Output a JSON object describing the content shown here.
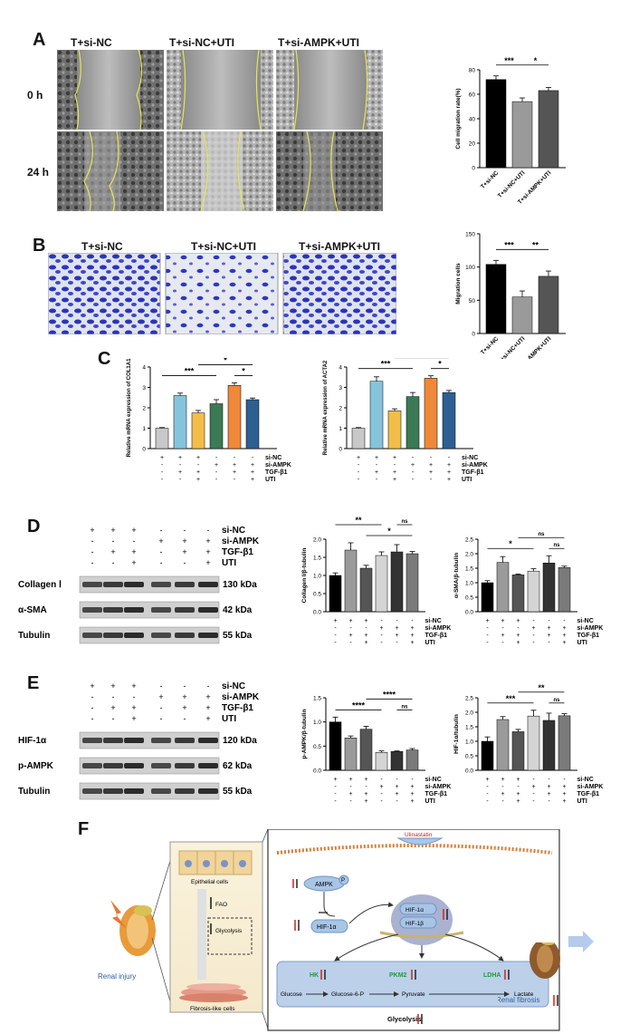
{
  "panels": {
    "A": "A",
    "B": "B",
    "C": "C",
    "D": "D",
    "E": "E",
    "F": "F"
  },
  "panelA": {
    "headers": [
      "T+si-NC",
      "T+si-NC+UTI",
      "T+si-AMPK+UTI"
    ],
    "rows": [
      "0 h",
      "24 h"
    ]
  },
  "panelB": {
    "headers": [
      "T+si-NC",
      "T+si-NC+UTI",
      "T+si-AMPK+UTI"
    ]
  },
  "panelD_blot": {
    "conditions": [
      "si-NC",
      "si-AMPK",
      "TGF-β1",
      "UTI"
    ],
    "signs": [
      [
        "+",
        "+",
        "+",
        "-",
        "-",
        "-"
      ],
      [
        "-",
        "-",
        "-",
        "+",
        "+",
        "+"
      ],
      [
        "-",
        "+",
        "+",
        "-",
        "+",
        "+"
      ],
      [
        "-",
        "-",
        "+",
        "-",
        "-",
        "+"
      ]
    ],
    "bands": [
      {
        "name": "Collagen Ⅰ",
        "kda": "130 kDa"
      },
      {
        "name": "α-SMA",
        "kda": "42 kDa"
      },
      {
        "name": "Tubulin",
        "kda": "55 kDa"
      }
    ]
  },
  "panelE_blot": {
    "conditions": [
      "si-NC",
      "si-AMPK",
      "TGF-β1",
      "UTI"
    ],
    "signs": [
      [
        "+",
        "+",
        "+",
        "-",
        "-",
        "-"
      ],
      [
        "-",
        "-",
        "-",
        "+",
        "+",
        "+"
      ],
      [
        "-",
        "+",
        "+",
        "-",
        "+",
        "+"
      ],
      [
        "-",
        "-",
        "+",
        "-",
        "-",
        "+"
      ]
    ],
    "bands": [
      {
        "name": "HIF-1α",
        "kda": "120 kDa"
      },
      {
        "name": "p-AMPK",
        "kda": "62 kDa"
      },
      {
        "name": "Tubulin",
        "kda": "55 kDa"
      }
    ]
  },
  "panelF": {
    "renal_injury": "Renal injury",
    "epithelial": "Epithelial cells",
    "fao": "FAO",
    "glycolysis_small": "Glycolysis",
    "fibrosis_cells": "Fibrosis-like cells",
    "ulinastatin": "Ulinastatin",
    "ampk": "AMPK",
    "p": "P",
    "hif_left": "HIF-1α",
    "hif_a": "HIF-1α",
    "hif_b": "HIF-1β",
    "hk": "HK",
    "pkm2": "PKM2",
    "ldha": "LDHA",
    "glucose": "Glucose",
    "g6p": "Glucose-6-P",
    "pyruvate": "Pyruvate",
    "lactate": "Lactate",
    "glycolysis": "Glycolysis",
    "renal_fibrosis": "Renal fibrosis"
  },
  "chart_data": [
    {
      "id": "A-migration",
      "type": "bar",
      "categories": [
        "T+si-NC",
        "T+si-NC+UTI",
        "T+si-AMPK+UTI"
      ],
      "values": [
        72,
        54,
        63
      ],
      "errors": [
        3,
        3,
        2.5
      ],
      "colors": [
        "#000000",
        "#9a9a9a",
        "#555555"
      ],
      "ylabel": "Cell migration rate(%)",
      "ylim": [
        0,
        80
      ],
      "yticks": [
        0,
        20,
        40,
        60,
        80
      ],
      "sig": [
        {
          "a": 0,
          "b": 1,
          "text": "***"
        },
        {
          "a": 1,
          "b": 2,
          "text": "*"
        }
      ]
    },
    {
      "id": "B-migration",
      "type": "bar",
      "categories": [
        "T+si-NC",
        "T+si-NC+UTI",
        "T+si-AMPK+UTI"
      ],
      "values": [
        104,
        55,
        86
      ],
      "errors": [
        6,
        9,
        8
      ],
      "colors": [
        "#000000",
        "#9a9a9a",
        "#555555"
      ],
      "ylabel": "Migration cells",
      "ylim": [
        0,
        150
      ],
      "yticks": [
        0,
        50,
        100,
        150
      ],
      "sig": [
        {
          "a": 0,
          "b": 1,
          "text": "***"
        },
        {
          "a": 1,
          "b": 2,
          "text": "**"
        }
      ]
    },
    {
      "id": "C-COL1A1",
      "type": "bar",
      "values": [
        1.0,
        2.6,
        1.75,
        2.2,
        3.1,
        2.4
      ],
      "errors": [
        0.03,
        0.12,
        0.12,
        0.2,
        0.12,
        0.08
      ],
      "colors": [
        "#c8c8c8",
        "#86c4dc",
        "#f2be4a",
        "#3a7a55",
        "#f0883a",
        "#2d5f93"
      ],
      "ylabel": "Relative mRNA expression of COL1A1",
      "ylim": [
        0,
        4
      ],
      "yticks": [
        0,
        1,
        2,
        3,
        4
      ],
      "conditions": [
        "si-NC",
        "si-AMPK",
        "TGF-β1",
        "UTI"
      ],
      "signs": [
        [
          "+",
          "+",
          "+",
          "-",
          "-",
          "-"
        ],
        [
          "-",
          "-",
          "-",
          "+",
          "+",
          "+"
        ],
        [
          "-",
          "+",
          "+",
          "-",
          "+",
          "+"
        ],
        [
          "-",
          "-",
          "+",
          "-",
          "-",
          "+"
        ]
      ],
      "sig": [
        {
          "a": 0,
          "b": 3,
          "text": "***",
          "lvl": 0
        },
        {
          "a": 2,
          "b": 5,
          "text": "*",
          "lvl": 1
        },
        {
          "a": 4,
          "b": 5,
          "text": "*",
          "lvl": 0
        }
      ]
    },
    {
      "id": "C-ACTA2",
      "type": "bar",
      "values": [
        1.0,
        3.3,
        1.85,
        2.55,
        3.45,
        2.75
      ],
      "errors": [
        0.03,
        0.22,
        0.1,
        0.2,
        0.12,
        0.1
      ],
      "colors": [
        "#c8c8c8",
        "#86c4dc",
        "#f2be4a",
        "#3a7a55",
        "#f0883a",
        "#2d5f93"
      ],
      "ylabel": "Relative mRNA expression of ACTA2",
      "ylim": [
        0,
        4
      ],
      "yticks": [
        0,
        1,
        2,
        3,
        4
      ],
      "conditions": [
        "si-NC",
        "si-AMPK",
        "TGF-β1",
        "UTI"
      ],
      "signs": [
        [
          "+",
          "+",
          "+",
          "-",
          "-",
          "-"
        ],
        [
          "-",
          "-",
          "-",
          "+",
          "+",
          "+"
        ],
        [
          "-",
          "+",
          "+",
          "-",
          "+",
          "+"
        ],
        [
          "-",
          "-",
          "+",
          "-",
          "-",
          "+"
        ]
      ],
      "sig": [
        {
          "a": 0,
          "b": 3,
          "text": "***",
          "lvl": 0
        },
        {
          "a": 2,
          "b": 5,
          "text": "*",
          "lvl": 1
        },
        {
          "a": 4,
          "b": 5,
          "text": "*",
          "lvl": 0
        }
      ]
    },
    {
      "id": "D-collagen",
      "type": "bar",
      "values": [
        1.0,
        1.7,
        1.2,
        1.55,
        1.65,
        1.6
      ],
      "errors": [
        0.07,
        0.2,
        0.08,
        0.1,
        0.2,
        0.06
      ],
      "colors": [
        "#000000",
        "#9a9a9a",
        "#555555",
        "#d4d4d4",
        "#333333",
        "#7a7a7a"
      ],
      "ylabel": "Collagen I/β-tubulin",
      "ylim": [
        0,
        2.0
      ],
      "yticks": [
        0.0,
        0.5,
        1.0,
        1.5,
        2.0
      ],
      "conditions": [
        "si-NC",
        "si-AMPK",
        "TGF-β1",
        "UTI"
      ],
      "signs": [
        [
          "+",
          "+",
          "+",
          "-",
          "-",
          "-"
        ],
        [
          "-",
          "-",
          "-",
          "+",
          "+",
          "+"
        ],
        [
          "-",
          "+",
          "+",
          "-",
          "+",
          "+"
        ],
        [
          "-",
          "-",
          "+",
          "-",
          "-",
          "+"
        ]
      ],
      "sig": [
        {
          "a": 0,
          "b": 3,
          "text": "**",
          "lvl": 1
        },
        {
          "a": 2,
          "b": 5,
          "text": "*",
          "lvl": 0
        },
        {
          "a": 4,
          "b": 5,
          "text": "ns",
          "lvl": 1
        }
      ]
    },
    {
      "id": "D-aSMA",
      "type": "bar",
      "values": [
        1.0,
        1.7,
        1.27,
        1.4,
        1.68,
        1.52
      ],
      "errors": [
        0.07,
        0.2,
        0.03,
        0.08,
        0.25,
        0.05
      ],
      "colors": [
        "#000000",
        "#9a9a9a",
        "#555555",
        "#d4d4d4",
        "#333333",
        "#7a7a7a"
      ],
      "ylabel": "α-SMA/β-tubulin",
      "ylim": [
        0,
        2.5
      ],
      "yticks": [
        0.0,
        0.5,
        1.0,
        1.5,
        2.0,
        2.5
      ],
      "conditions": [
        "si-NC",
        "si-AMPK",
        "TGF-β1",
        "UTI"
      ],
      "signs": [
        [
          "+",
          "+",
          "+",
          "-",
          "-",
          "-"
        ],
        [
          "-",
          "-",
          "-",
          "+",
          "+",
          "+"
        ],
        [
          "-",
          "+",
          "+",
          "-",
          "+",
          "+"
        ],
        [
          "-",
          "-",
          "+",
          "-",
          "-",
          "+"
        ]
      ],
      "sig": [
        {
          "a": 0,
          "b": 3,
          "text": "*",
          "lvl": 0
        },
        {
          "a": 2,
          "b": 5,
          "text": "ns",
          "lvl": 1
        },
        {
          "a": 4,
          "b": 5,
          "text": "ns",
          "lvl": 0
        }
      ]
    },
    {
      "id": "E-pAMPK",
      "type": "bar",
      "values": [
        1.0,
        0.67,
        0.85,
        0.37,
        0.39,
        0.42
      ],
      "errors": [
        0.1,
        0.04,
        0.06,
        0.03,
        0.01,
        0.03
      ],
      "colors": [
        "#000000",
        "#9a9a9a",
        "#555555",
        "#d4d4d4",
        "#333333",
        "#7a7a7a"
      ],
      "ylabel": "p-AMPK/β-tubulin",
      "ylim": [
        0,
        1.5
      ],
      "yticks": [
        0.0,
        0.5,
        1.0,
        1.5
      ],
      "conditions": [
        "si-NC",
        "si-AMPK",
        "TGF-β1",
        "UTI"
      ],
      "signs": [
        [
          "+",
          "+",
          "+",
          "-",
          "-",
          "-"
        ],
        [
          "-",
          "-",
          "-",
          "+",
          "+",
          "+"
        ],
        [
          "-",
          "+",
          "+",
          "-",
          "+",
          "+"
        ],
        [
          "-",
          "-",
          "+",
          "-",
          "-",
          "+"
        ]
      ],
      "sig": [
        {
          "a": 0,
          "b": 3,
          "text": "****",
          "lvl": 0
        },
        {
          "a": 2,
          "b": 5,
          "text": "****",
          "lvl": 1
        },
        {
          "a": 4,
          "b": 5,
          "text": "ns",
          "lvl": 0
        }
      ]
    },
    {
      "id": "E-HIF",
      "type": "bar",
      "values": [
        1.0,
        1.75,
        1.33,
        1.87,
        1.72,
        1.88
      ],
      "errors": [
        0.15,
        0.1,
        0.08,
        0.2,
        0.25,
        0.07
      ],
      "colors": [
        "#000000",
        "#9a9a9a",
        "#555555",
        "#d4d4d4",
        "#333333",
        "#7a7a7a"
      ],
      "ylabel": "HIF-1α/tubulin",
      "ylim": [
        0,
        2.5
      ],
      "yticks": [
        0.0,
        0.5,
        1.0,
        1.5,
        2.0,
        2.5
      ],
      "conditions": [
        "si-NC",
        "si-AMPK",
        "TGF-β1",
        "UTI"
      ],
      "signs": [
        [
          "+",
          "+",
          "+",
          "-",
          "-",
          "-"
        ],
        [
          "-",
          "-",
          "-",
          "+",
          "+",
          "+"
        ],
        [
          "-",
          "+",
          "+",
          "-",
          "+",
          "+"
        ],
        [
          "-",
          "-",
          "+",
          "-",
          "-",
          "+"
        ]
      ],
      "sig": [
        {
          "a": 0,
          "b": 3,
          "text": "***",
          "lvl": 0
        },
        {
          "a": 2,
          "b": 5,
          "text": "**",
          "lvl": 1
        },
        {
          "a": 4,
          "b": 5,
          "text": "ns",
          "lvl": 0
        }
      ]
    }
  ]
}
